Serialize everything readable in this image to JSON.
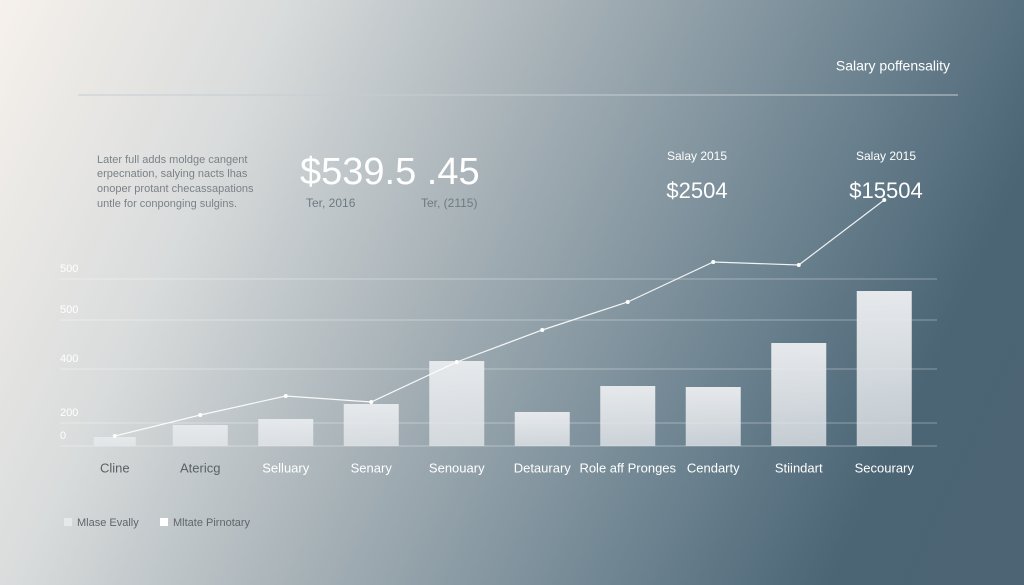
{
  "chart_data": {
    "type": "bar-line",
    "title": "Salary poffensality",
    "description": [
      "Later full adds moldge cangent",
      "erpecnation, salying nacts lhas",
      "onoper protant checassapations",
      "untle for conponging sulgins."
    ],
    "headline": {
      "value": "$539.5 .45",
      "labels": [
        "Ter, 2016",
        "Ter, (2115)"
      ]
    },
    "callouts": [
      {
        "label": "Salay 2015",
        "value": "$2504"
      },
      {
        "label": "Salay 2015",
        "value": "$15504"
      }
    ],
    "categories": [
      "Cline",
      "Atericg",
      "Selluary",
      "Senary",
      "Senouary",
      "Detaurary",
      "Role aff Pronges",
      "Cendarty",
      "Stiindart",
      "Secourary"
    ],
    "series": [
      {
        "name": "Mlase Evally",
        "kind": "bar",
        "color": "#e6e9ec",
        "values": [
          9,
          21,
          27,
          42,
          85,
          34,
          60,
          59,
          103,
          155
        ]
      },
      {
        "name": "Mltate Pirnotary",
        "kind": "line",
        "color": "#ffffff",
        "values": [
          10,
          31,
          50,
          44,
          84,
          116,
          144,
          184,
          181,
          246
        ]
      }
    ],
    "ylim": [
      0,
      260
    ],
    "yticks": [
      0,
      {
        "value": 23,
        "label": "200"
      },
      {
        "value": 77,
        "label": "400"
      },
      {
        "value": 126,
        "label": "500"
      },
      {
        "value": 167,
        "label": "500"
      }
    ],
    "grid": true
  }
}
